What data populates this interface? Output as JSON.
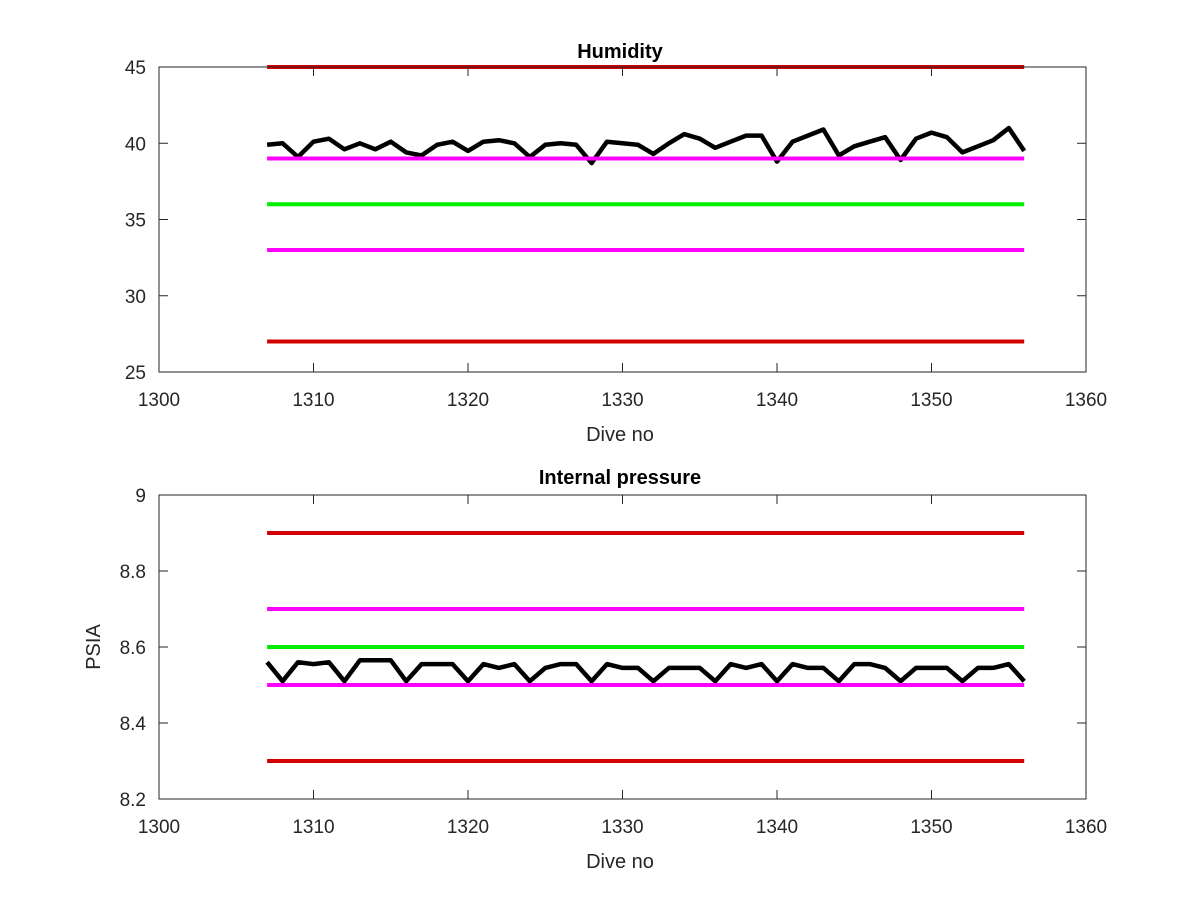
{
  "chart_data": [
    {
      "type": "line",
      "title": "Humidity",
      "xlabel": "Dive no",
      "ylabel": "",
      "xlim": [
        1300,
        1360
      ],
      "ylim": [
        25,
        45
      ],
      "xticks": [
        1300,
        1310,
        1320,
        1330,
        1340,
        1350,
        1360
      ],
      "yticks": [
        25,
        30,
        35,
        40,
        45
      ],
      "grid": false,
      "box": true,
      "series": [
        {
          "color": "#000000",
          "x": [
            1307,
            1308,
            1309,
            1310,
            1311,
            1312,
            1313,
            1314,
            1315,
            1316,
            1317,
            1318,
            1319,
            1320,
            1321,
            1322,
            1323,
            1324,
            1325,
            1326,
            1327,
            1328,
            1329,
            1330,
            1331,
            1332,
            1333,
            1334,
            1335,
            1336,
            1337,
            1338,
            1339,
            1340,
            1341,
            1342,
            1343,
            1344,
            1345,
            1346,
            1347,
            1348,
            1349,
            1350,
            1351,
            1352,
            1353,
            1354,
            1355,
            1356
          ],
          "y": [
            39.9,
            40.0,
            39.1,
            40.1,
            40.3,
            39.6,
            40.0,
            39.6,
            40.1,
            39.4,
            39.2,
            39.9,
            40.1,
            39.5,
            40.1,
            40.2,
            40.0,
            39.1,
            39.9,
            40.0,
            39.9,
            38.7,
            40.1,
            40.0,
            39.9,
            39.3,
            40.0,
            40.6,
            40.3,
            39.7,
            40.1,
            40.5,
            40.5,
            38.8,
            40.1,
            40.5,
            40.9,
            39.2,
            39.8,
            40.1,
            40.4,
            38.9,
            40.3,
            40.7,
            40.4,
            39.4,
            39.8,
            40.2,
            41.0,
            39.5
          ]
        },
        {
          "color": "#d40000",
          "x": [
            1307,
            1356
          ],
          "y": [
            45,
            45
          ]
        },
        {
          "color": "#ff00ff",
          "x": [
            1307,
            1356
          ],
          "y": [
            39,
            39
          ]
        },
        {
          "color": "#00ee00",
          "x": [
            1307,
            1356
          ],
          "y": [
            36,
            36
          ]
        },
        {
          "color": "#ff00ff",
          "x": [
            1307,
            1356
          ],
          "y": [
            33,
            33
          ]
        },
        {
          "color": "#d40000",
          "x": [
            1307,
            1356
          ],
          "y": [
            27,
            27
          ]
        }
      ]
    },
    {
      "type": "line",
      "title": "Internal pressure",
      "xlabel": "Dive no",
      "ylabel": "PSIA",
      "xlim": [
        1300,
        1360
      ],
      "ylim": [
        8.2,
        9.0
      ],
      "xticks": [
        1300,
        1310,
        1320,
        1330,
        1340,
        1350,
        1360
      ],
      "yticks": [
        8.2,
        8.4,
        8.6,
        8.8,
        9
      ],
      "yticklabels": [
        "8.2",
        "8.4",
        "8.6",
        "8.8",
        "9"
      ],
      "grid": false,
      "box": true,
      "series": [
        {
          "color": "#000000",
          "x": [
            1307,
            1308,
            1309,
            1310,
            1311,
            1312,
            1313,
            1314,
            1315,
            1316,
            1317,
            1318,
            1319,
            1320,
            1321,
            1322,
            1323,
            1324,
            1325,
            1326,
            1327,
            1328,
            1329,
            1330,
            1331,
            1332,
            1333,
            1334,
            1335,
            1336,
            1337,
            1338,
            1339,
            1340,
            1341,
            1342,
            1343,
            1344,
            1345,
            1346,
            1347,
            1348,
            1349,
            1350,
            1351,
            1352,
            1353,
            1354,
            1355,
            1356
          ],
          "y": [
            8.56,
            8.51,
            8.56,
            8.555,
            8.56,
            8.51,
            8.565,
            8.565,
            8.565,
            8.51,
            8.555,
            8.555,
            8.555,
            8.51,
            8.555,
            8.545,
            8.555,
            8.51,
            8.545,
            8.555,
            8.555,
            8.51,
            8.555,
            8.545,
            8.545,
            8.51,
            8.545,
            8.545,
            8.545,
            8.51,
            8.555,
            8.545,
            8.555,
            8.51,
            8.555,
            8.545,
            8.545,
            8.51,
            8.555,
            8.555,
            8.545,
            8.51,
            8.545,
            8.545,
            8.545,
            8.51,
            8.545,
            8.545,
            8.555,
            8.51
          ]
        },
        {
          "color": "#d40000",
          "x": [
            1307,
            1356
          ],
          "y": [
            8.9,
            8.9
          ]
        },
        {
          "color": "#ff00ff",
          "x": [
            1307,
            1356
          ],
          "y": [
            8.7,
            8.7
          ]
        },
        {
          "color": "#00ee00",
          "x": [
            1307,
            1356
          ],
          "y": [
            8.6,
            8.6
          ]
        },
        {
          "color": "#ff00ff",
          "x": [
            1307,
            1356
          ],
          "y": [
            8.5,
            8.5
          ]
        },
        {
          "color": "#d40000",
          "x": [
            1307,
            1356
          ],
          "y": [
            8.3,
            8.3
          ]
        }
      ]
    }
  ]
}
